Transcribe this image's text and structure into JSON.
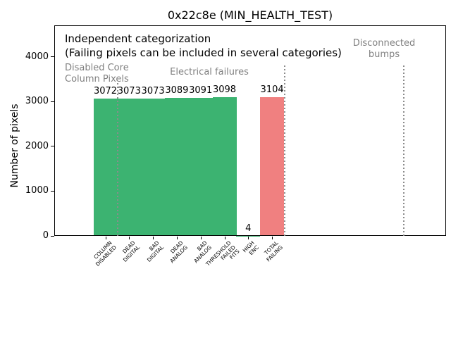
{
  "chart_data": {
    "type": "bar",
    "title": "0x22c8e (MIN_HEALTH_TEST)",
    "ylabel": "Number of pixels",
    "xlabel": "",
    "categories": [
      [
        "COLUMN",
        "DISABLED"
      ],
      [
        "DEAD",
        "DIGITAL"
      ],
      [
        "BAD",
        "DIGITAL"
      ],
      [
        "DEAD",
        "ANALOG"
      ],
      [
        "BAD",
        "ANALOG"
      ],
      [
        "THRESHOLD",
        "FAILED",
        "FITS"
      ],
      [
        "HIGH",
        "ENC"
      ],
      [
        "TOTAL",
        "FAILING"
      ]
    ],
    "values": [
      3072,
      3073,
      3073,
      3089,
      3091,
      3098,
      4,
      3104
    ],
    "bar_colors": [
      "#3cb371",
      "#3cb371",
      "#3cb371",
      "#3cb371",
      "#3cb371",
      "#3cb371",
      "#3cb371",
      "#f08080"
    ],
    "yticks": [
      0,
      1000,
      2000,
      3000,
      4000
    ],
    "ylim": [
      0,
      4700
    ],
    "grid": false,
    "legend": "none",
    "annotations": {
      "heading": "Independent categorization",
      "subheading": "(Failing pixels can be included in several categories)"
    },
    "regions": [
      {
        "lines": [
          "Disabled Core",
          "Column Pixels"
        ]
      },
      {
        "lines": [
          "Electrical failures"
        ]
      },
      {
        "lines": [
          "Disconnected",
          "bumps"
        ]
      }
    ],
    "colors": {
      "bar_green": "#3cb371",
      "bar_red": "#f08080",
      "muted_text": "#808080",
      "divider_line": "#8c8c8c"
    }
  }
}
